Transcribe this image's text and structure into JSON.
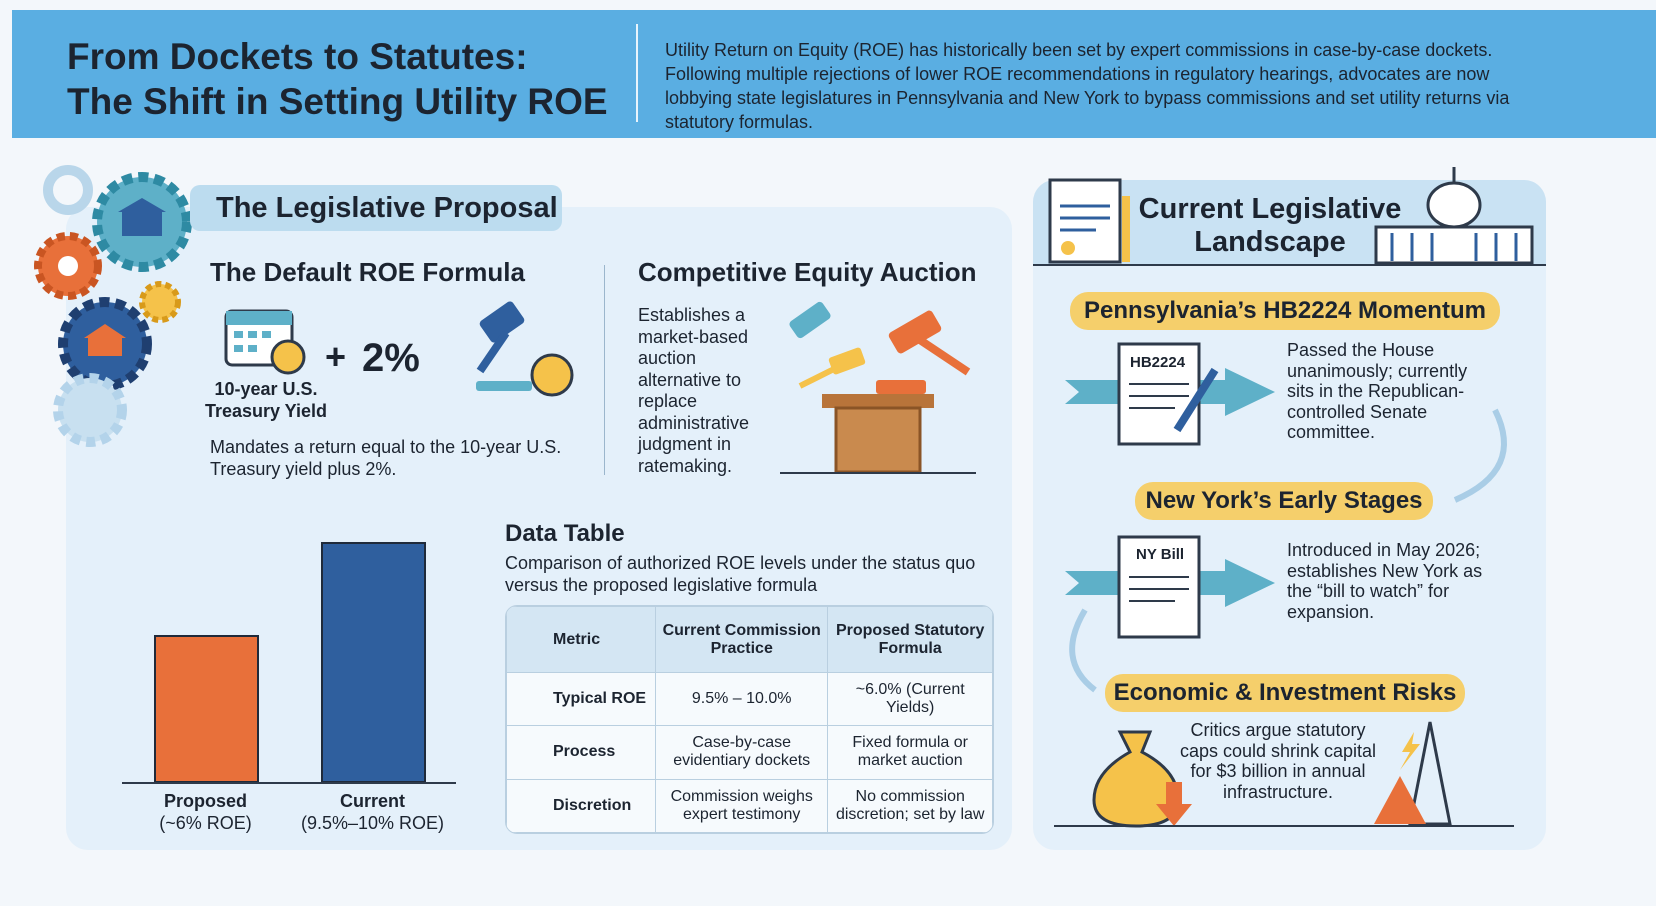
{
  "header": {
    "title": [
      "From Dockets to Statutes:",
      "The Shift in Setting Utility ROE"
    ],
    "description": "Utility Return on Equity (ROE) has historically been set by expert commissions in case-by-case dockets. Following multiple rejections of lower ROE recommendations in regulatory hearings, advocates are now lobbying state legislatures in Pennsylvania and New York to bypass commissions and set utility returns via statutory formulas."
  },
  "proposal": {
    "title": "The Legislative Proposal",
    "formula": {
      "title": "The Default ROE Formula",
      "operator": "+",
      "addend": "2%",
      "icon_label": "10-year U.S. Treasury Yield",
      "description": "Mandates a return equal to the 10-year U.S. Treasury yield plus 2%."
    },
    "auction": {
      "title": "Competitive Equity Auction",
      "description": "Establishes a market-based auction alternative to replace administrative judgment in ratemaking."
    }
  },
  "chart_data": {
    "type": "bar",
    "categories": [
      "Proposed",
      "Current"
    ],
    "values": [
      6,
      9.75
    ],
    "value_labels": [
      "(~6% ROE)",
      "(9.5%–10% ROE)"
    ],
    "colors": [
      "#e8703a",
      "#2f5f9e"
    ]
  },
  "table": {
    "title": "Data Table",
    "caption": "Comparison of authorized ROE levels under the status quo versus the proposed legislative formula",
    "columns": [
      "Metric",
      "Current Commission Practice",
      "Proposed Statutory Formula"
    ],
    "rows": [
      [
        "Typical ROE",
        "9.5% – 10.0%",
        "~6.0% (Current Yields)"
      ],
      [
        "Process",
        "Case-by-case evidentiary dockets",
        "Fixed formula or market auction"
      ],
      [
        "Discretion",
        "Commission weighs expert testimony",
        "No commission discretion; set by law"
      ]
    ]
  },
  "landscape": {
    "title": "Current Legislative Landscape",
    "items": [
      {
        "heading": "Pennsylvania’s HB2224 Momentum",
        "doc_label": "HB2224",
        "text": "Passed the House unanimously; currently sits in the Republican-controlled Senate committee."
      },
      {
        "heading": "New York’s Early Stages",
        "doc_label": "NY Bill",
        "text": "Introduced in May 2026; establishes New York as the “bill to watch” for expansion."
      },
      {
        "heading": "Economic & Investment Risks",
        "text": "Critics argue statutory caps could shrink capital for $3 billion in annual infrastructure."
      }
    ]
  }
}
